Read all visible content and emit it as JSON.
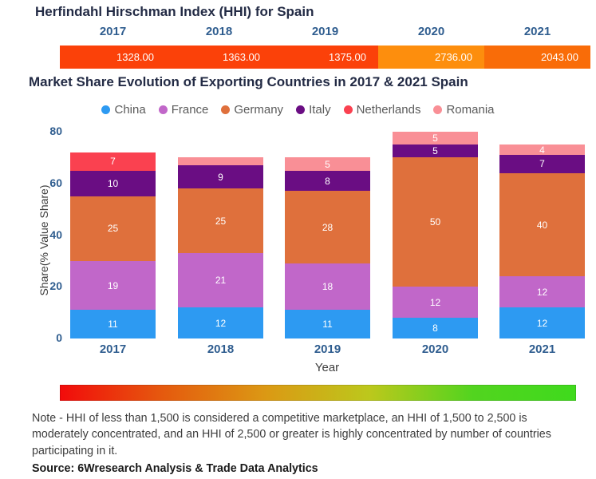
{
  "hhi_header": {
    "title": "Herfindahl Hirschman Index (HHI) for Spain",
    "entries": [
      {
        "year": "2017",
        "value": "1328.00",
        "color": "#FB4109"
      },
      {
        "year": "2018",
        "value": "1363.00",
        "color": "#FB4109"
      },
      {
        "year": "2019",
        "value": "1375.00",
        "color": "#FB4109"
      },
      {
        "year": "2020",
        "value": "2736.00",
        "color": "#FD8E0D"
      },
      {
        "year": "2021",
        "value": "2043.00",
        "color": "#F96C08"
      }
    ]
  },
  "chart": {
    "title": "Market Share Evolution of Exporting Countries in 2017 & 2021 Spain",
    "ylabel": "Share(% Value Share)",
    "xlabel": "Year",
    "yticks": [
      0,
      20,
      40,
      60,
      80
    ],
    "legend_position": "top-center",
    "tick_color": "#2F5D8F"
  },
  "chart_data": {
    "type": "bar",
    "stacked": true,
    "categories": [
      "2017",
      "2018",
      "2019",
      "2020",
      "2021"
    ],
    "series": [
      {
        "name": "China",
        "color": "#2D9AF2",
        "values": [
          11,
          12,
          11,
          8,
          12
        ]
      },
      {
        "name": "France",
        "color": "#C167C9",
        "values": [
          19,
          21,
          18,
          12,
          12
        ]
      },
      {
        "name": "Germany",
        "color": "#DF703C",
        "values": [
          25,
          25,
          28,
          50,
          40
        ]
      },
      {
        "name": "Italy",
        "color": "#6A0D83",
        "values": [
          10,
          9,
          8,
          5,
          7
        ]
      },
      {
        "name": "Netherlands",
        "color": "#FA4150",
        "values": [
          7,
          0,
          0,
          0,
          0
        ]
      },
      {
        "name": "Romania",
        "color": "#F98F96",
        "values": [
          0,
          3,
          5,
          5,
          4
        ]
      }
    ],
    "title": "Market Share Evolution of Exporting Countries in 2017 & 2021 Spain",
    "xlabel": "Year",
    "ylabel": "Share(% Value Share)",
    "ylim": [
      0,
      80
    ],
    "grid": false,
    "min_label_value": 4
  },
  "gradient_legend": {
    "stops": [
      "#F20B0B",
      "#E55A0E",
      "#DB9914",
      "#BCC81C",
      "#52D41F",
      "#3FDA1D"
    ]
  },
  "note": {
    "text": "Note - HHI of less than 1,500 is considered a competitive marketplace, an HHI of 1,500 to 2,500 is moderately concentrated, and an HHI of 2,500 or greater is highly concentrated by number of countries participating in it."
  },
  "source": {
    "text": "Source: 6Wresearch Analysis & Trade Data Analytics"
  }
}
